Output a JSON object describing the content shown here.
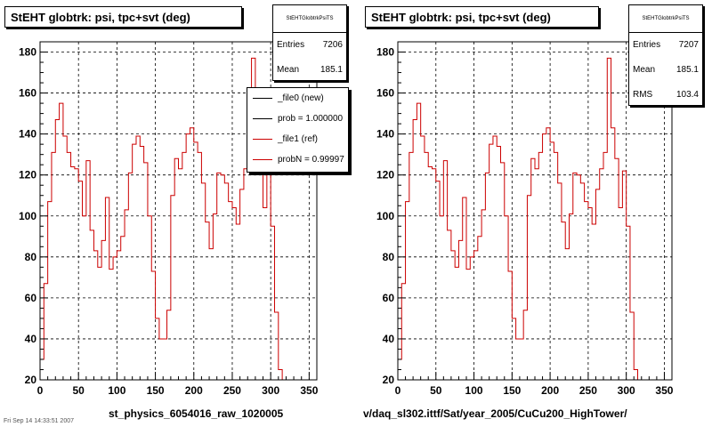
{
  "panels": [
    {
      "title": "StEHT globtrk: psi, tpc+svt (deg)",
      "stats": {
        "name": "StEHTGlobtrkPsiTS",
        "rows": [
          {
            "label": "Entries",
            "value": "7206"
          },
          {
            "label": "Mean",
            "value": "185.1"
          }
        ]
      },
      "legend": [
        {
          "label": "_file0 (new)",
          "color": "#000000"
        },
        {
          "label": "prob = 1.000000",
          "color": "#000000"
        },
        {
          "label": "_file1 (ref)",
          "color": "#cc0000"
        },
        {
          "label": "probN = 0.99997",
          "color": "#cc0000"
        }
      ],
      "caption": "st_physics_6054016_raw_1020005"
    },
    {
      "title": "StEHT globtrk: psi, tpc+svt (deg)",
      "stats": {
        "name": "StEHTGlobtrkPsiTS",
        "rows": [
          {
            "label": "Entries",
            "value": "7207"
          },
          {
            "label": "Mean",
            "value": "185.1"
          },
          {
            "label": "RMS",
            "value": "103.4"
          }
        ]
      },
      "caption": "v/daq_sl302.ittf/Sat/year_2005/CuCu200_HighTower/"
    }
  ],
  "footer": "Fri Sep 14 14:33:51 2007",
  "chart_data": [
    {
      "type": "histogram",
      "title": "StEHT globtrk: psi, tpc+svt (deg)",
      "xlabel": "",
      "ylabel": "",
      "xlim": [
        0,
        360
      ],
      "ylim": [
        20,
        185
      ],
      "x_ticks": [
        0,
        50,
        100,
        150,
        200,
        250,
        300,
        350
      ],
      "y_ticks": [
        20,
        40,
        60,
        80,
        100,
        120,
        140,
        160,
        180
      ],
      "grid": true,
      "line_color": "#cc0000",
      "bin_width": 5,
      "values": [
        30,
        67,
        107,
        131,
        147,
        155,
        139,
        131,
        124,
        123,
        117,
        100,
        127,
        93,
        83,
        75,
        88,
        109,
        74,
        80,
        83,
        90,
        103,
        121,
        135,
        139,
        134,
        126,
        100,
        73,
        50,
        40,
        40,
        54,
        110,
        128,
        123,
        131,
        140,
        143,
        136,
        131,
        116,
        97,
        84,
        101,
        121,
        120,
        116,
        107,
        104,
        96,
        113,
        123,
        131,
        177,
        143,
        128,
        104,
        122,
        95,
        53,
        25
      ],
      "legend_placement": "top-right"
    },
    {
      "type": "histogram",
      "title": "StEHT globtrk: psi, tpc+svt (deg)",
      "xlabel": "",
      "ylabel": "",
      "xlim": [
        0,
        360
      ],
      "ylim": [
        20,
        185
      ],
      "x_ticks": [
        0,
        50,
        100,
        150,
        200,
        250,
        300,
        350
      ],
      "y_ticks": [
        20,
        40,
        60,
        80,
        100,
        120,
        140,
        160,
        180
      ],
      "grid": true,
      "line_color": "#cc0000",
      "bin_width": 5,
      "values": [
        30,
        67,
        107,
        131,
        147,
        155,
        139,
        131,
        124,
        123,
        117,
        100,
        127,
        93,
        83,
        75,
        88,
        109,
        74,
        80,
        83,
        90,
        103,
        121,
        135,
        139,
        134,
        126,
        100,
        73,
        50,
        40,
        40,
        54,
        110,
        128,
        123,
        131,
        140,
        143,
        136,
        131,
        116,
        97,
        84,
        101,
        121,
        120,
        116,
        107,
        104,
        96,
        113,
        123,
        131,
        177,
        143,
        128,
        104,
        122,
        95,
        53,
        25
      ]
    }
  ]
}
